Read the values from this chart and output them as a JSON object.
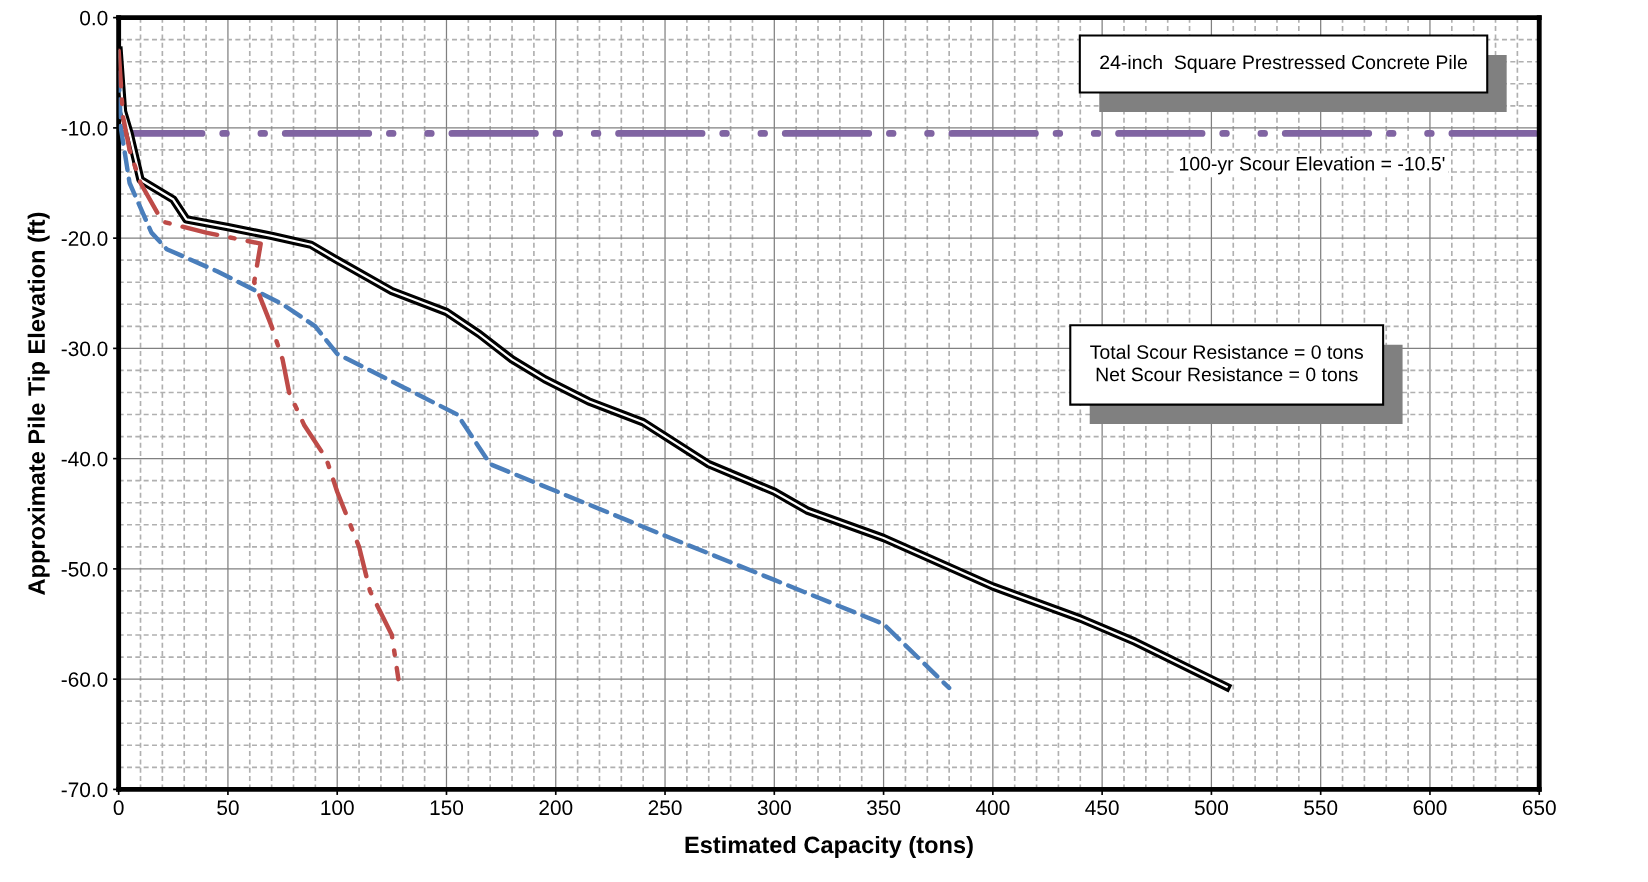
{
  "chart_data": {
    "type": "line",
    "xlabel": "Estimated Capacity (tons)",
    "ylabel": "Approximate Pile Tip Elevation (ft)",
    "xlim": [
      0,
      650
    ],
    "xticks": [
      0,
      50,
      100,
      150,
      200,
      250,
      300,
      350,
      400,
      450,
      500,
      550,
      600,
      650
    ],
    "ylim": [
      -70,
      0
    ],
    "yticks": [
      {
        "value": 0,
        "label": "0.0"
      },
      {
        "value": -10,
        "label": "-10.0"
      },
      {
        "value": -20,
        "label": "-20.0"
      },
      {
        "value": -30,
        "label": "-30.0"
      },
      {
        "value": -40,
        "label": "-40.0"
      },
      {
        "value": -50,
        "label": "-50.0"
      },
      {
        "value": -60,
        "label": "-60.0"
      },
      {
        "value": -70,
        "label": "-70.0"
      }
    ],
    "grid": true,
    "marker": "none",
    "series": [
      {
        "color": "#000000",
        "line_style": "solid",
        "x": [
          0,
          2,
          5,
          10,
          25,
          31,
          50,
          70,
          88,
          100,
          125,
          150,
          165,
          180,
          195,
          215,
          240,
          270,
          300,
          315,
          350,
          400,
          440,
          465,
          507
        ],
        "values": [
          -3,
          -8.5,
          -10.5,
          -14.7,
          -16.5,
          -18.3,
          -19,
          -19.8,
          -20.6,
          -22,
          -24.8,
          -26.7,
          -28.7,
          -31,
          -32.8,
          -34.8,
          -36.7,
          -40.5,
          -43,
          -44.7,
          -47.2,
          -51.6,
          -54.5,
          -56.6,
          -60.7
        ]
      },
      {
        "color": "#4a7ebb",
        "line_style": "dashed",
        "x": [
          0,
          1,
          5,
          15,
          22,
          45,
          75,
          90,
          100,
          130,
          155,
          170,
          250,
          300,
          350,
          380
        ],
        "values": [
          -5,
          -10,
          -15,
          -19.5,
          -21,
          -23,
          -26,
          -28,
          -30.5,
          -33.5,
          -36,
          -40.5,
          -47,
          -51,
          -55,
          -60.8
        ]
      },
      {
        "color": "#be4b48",
        "line_style": "dashdot",
        "x": [
          0,
          2,
          5,
          10,
          20,
          40,
          65,
          62,
          70,
          75,
          78,
          85,
          95,
          100,
          110,
          115,
          125,
          128
        ],
        "values": [
          -3,
          -9,
          -12,
          -15,
          -18.5,
          -19.5,
          -20.5,
          -24,
          -28,
          -31,
          -34,
          -37,
          -40,
          -43,
          -48,
          -52,
          -56,
          -60
        ]
      }
    ],
    "ref_lines": [
      {
        "axis": "y",
        "value": -10.5,
        "label": "100-yr Scour Elevation = -10.5'",
        "color": "#8064a2",
        "line_style": "dashdot"
      }
    ],
    "annotations": [
      "24-inch  Square Prestressed Concrete Pile",
      "Total Scour Resistance = 0 tons\nNet Scour Resistance = 0 tons"
    ]
  }
}
